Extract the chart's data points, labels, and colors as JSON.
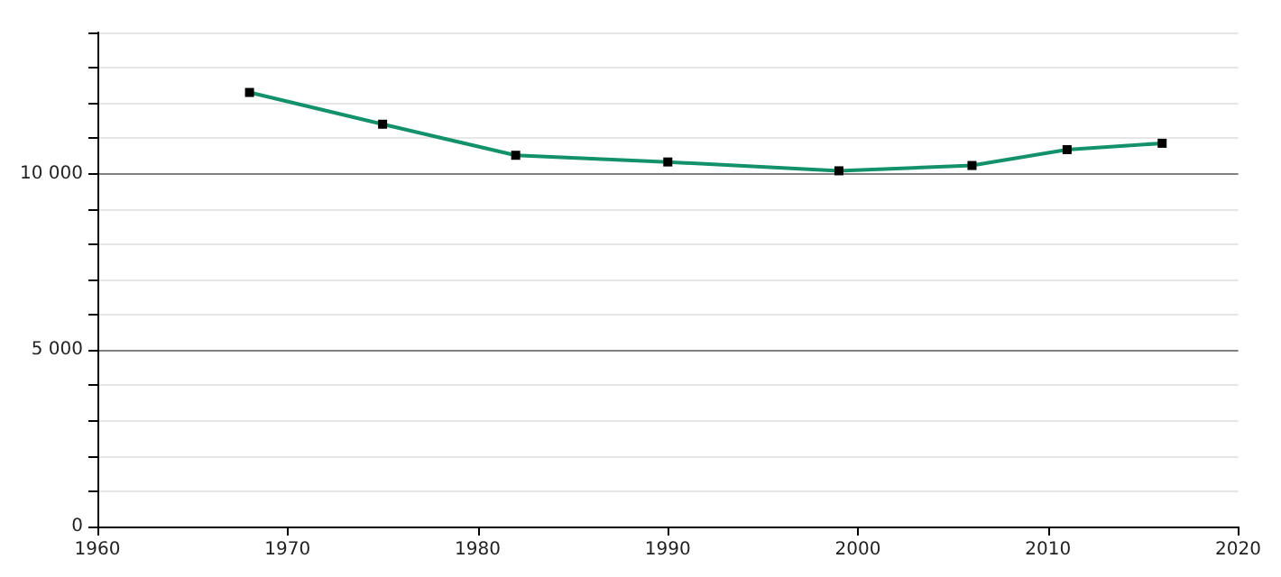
{
  "chart_data": {
    "type": "line",
    "x": [
      1968,
      1975,
      1982,
      1990,
      1999,
      2006,
      2011,
      2016
    ],
    "series": [
      {
        "color": "#13916a",
        "values": [
          12300,
          11400,
          10520,
          10330,
          10080,
          10230,
          10680,
          10860
        ]
      }
    ],
    "xlim": [
      1960,
      2020
    ],
    "xticks": [
      1960,
      1970,
      1980,
      1990,
      2000,
      2010,
      2020
    ],
    "ylim": [
      0,
      14000
    ],
    "yticks": [
      0,
      {
        "value": 1000,
        "label": null
      },
      {
        "value": 2000,
        "label": null
      },
      {
        "value": 3000,
        "label": null
      },
      {
        "value": 4000,
        "label": null
      },
      {
        "value": 5000,
        "label": "5 000"
      },
      {
        "value": 6000,
        "label": null
      },
      {
        "value": 7000,
        "label": null
      },
      {
        "value": 8000,
        "label": null
      },
      {
        "value": 9000,
        "label": null
      },
      {
        "value": 10000,
        "label": "10 000"
      },
      {
        "value": 11000,
        "label": null
      },
      {
        "value": 12000,
        "label": null
      },
      {
        "value": 13000,
        "label": null
      },
      {
        "value": 14000,
        "label": null
      }
    ],
    "grid": "y",
    "marker": "square",
    "line_style": "solid"
  }
}
